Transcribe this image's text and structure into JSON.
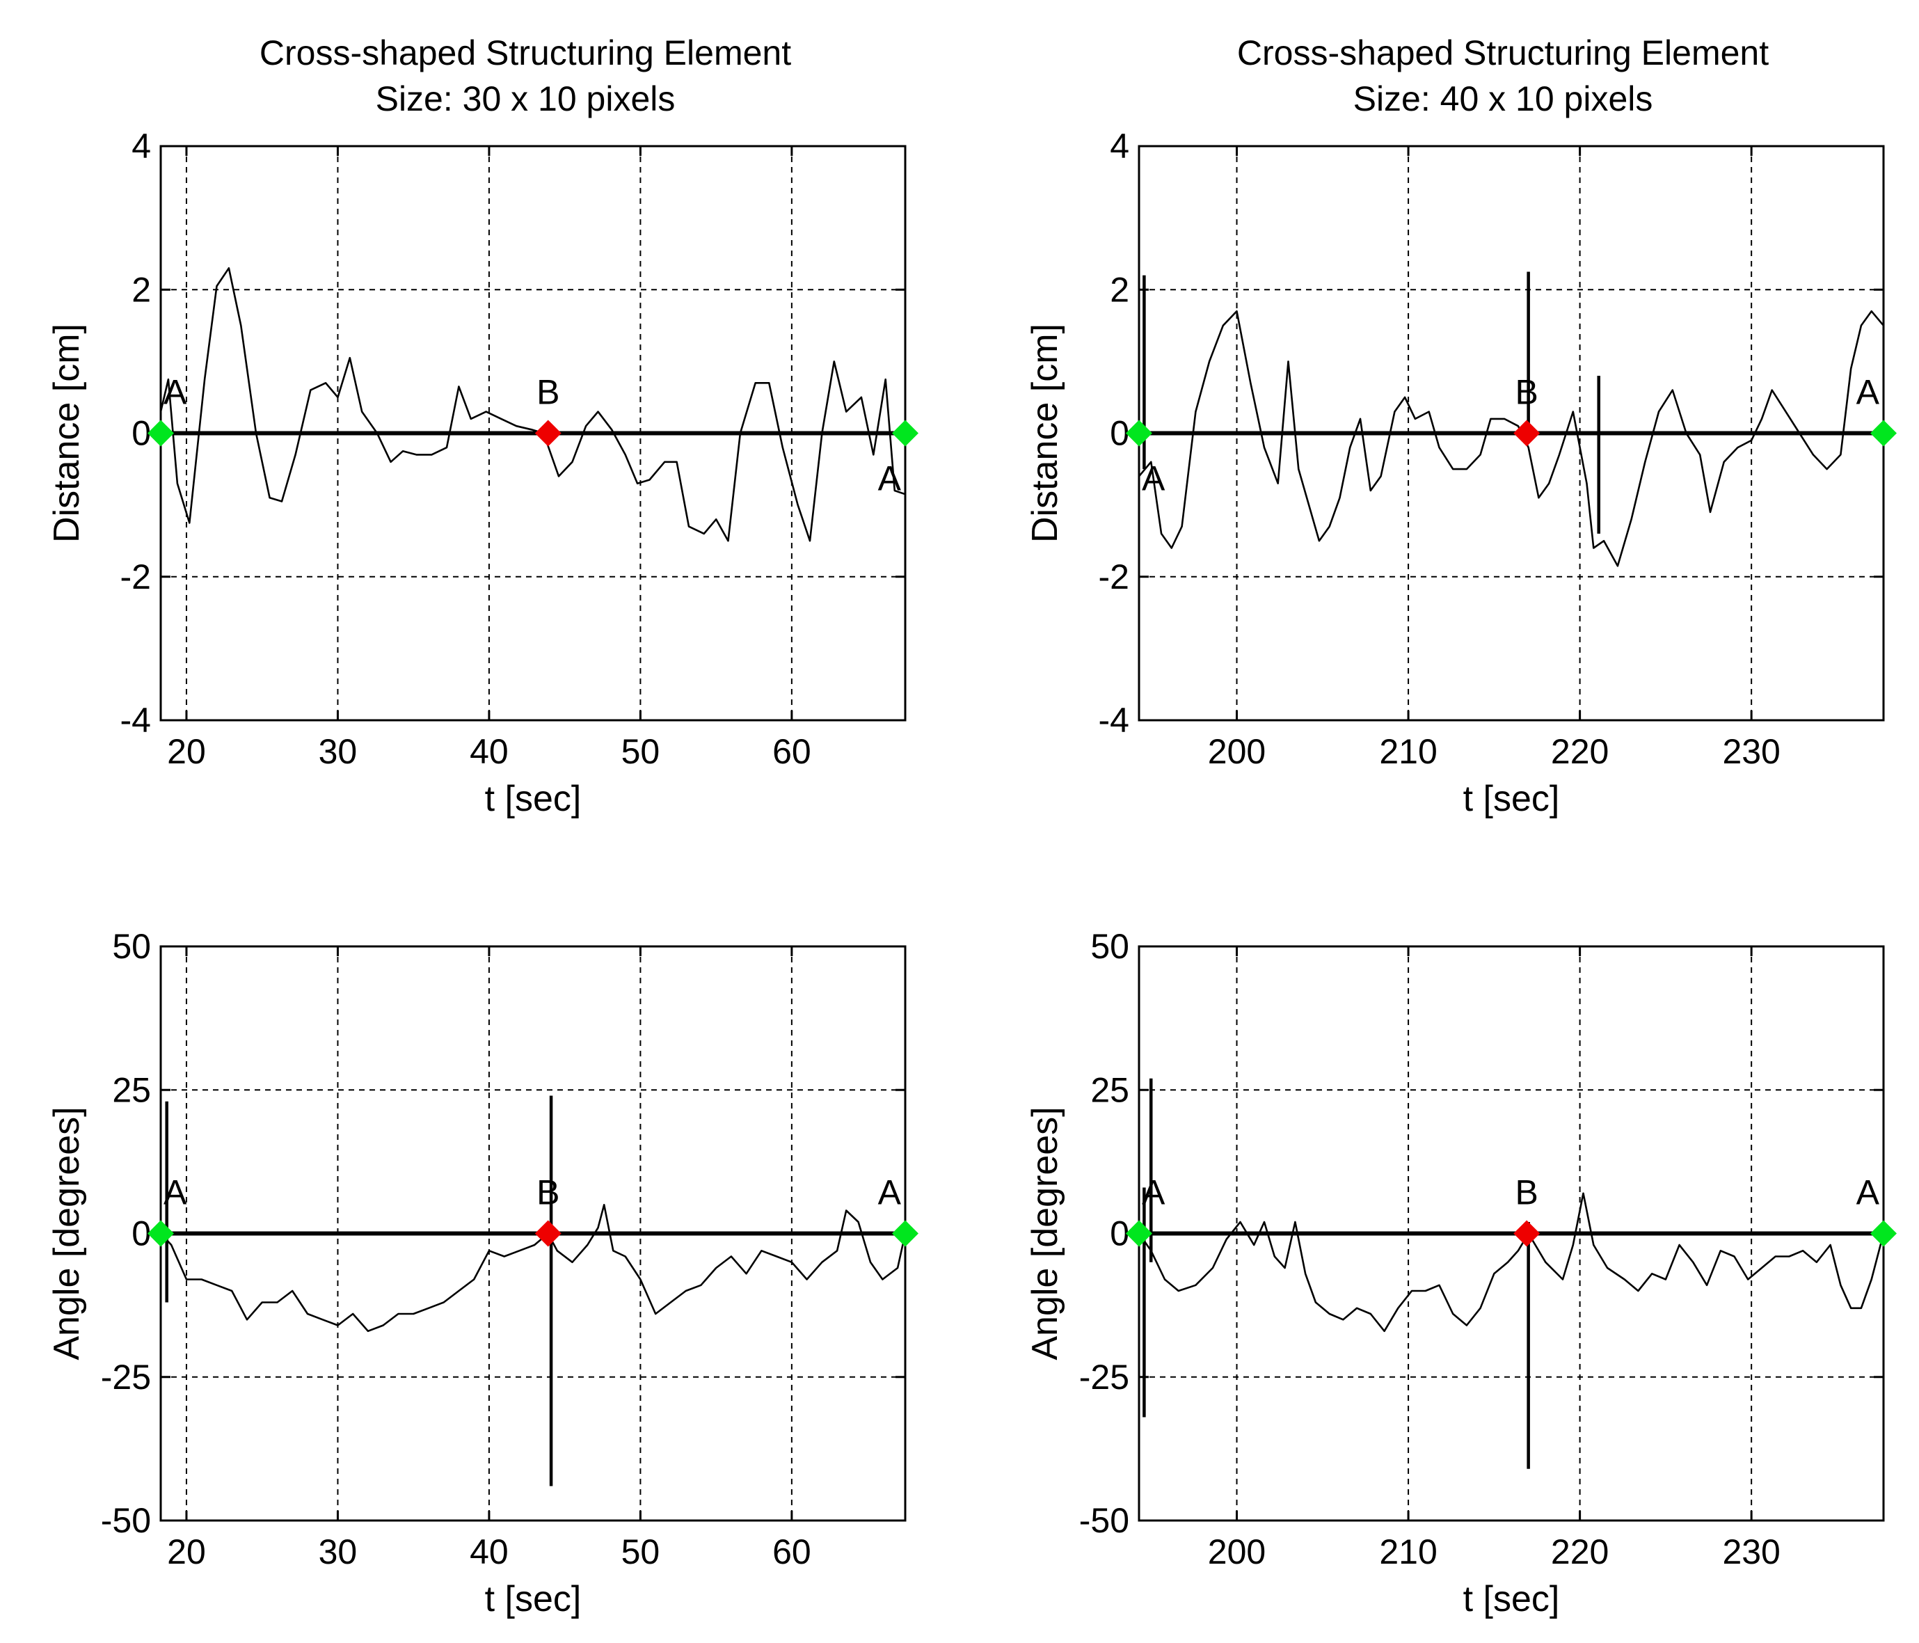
{
  "figure": {
    "columns": [
      {
        "title_line1": "Cross-shaped Structuring Element",
        "title_line2": "Size: 30 x 10 pixels"
      },
      {
        "title_line1": "Cross-shaped Structuring Element",
        "title_line2": "Size: 40 x 10 pixels"
      }
    ]
  },
  "colors": {
    "trace": "#000000",
    "marker_A": "#00e61e",
    "marker_B": "#ee0000",
    "grid": "#000000"
  },
  "chart_data": [
    {
      "id": "distance-30x10",
      "type": "line",
      "xlabel": "t [sec]",
      "ylabel": "Distance [cm]",
      "xlim": [
        18.3,
        67.5
      ],
      "ylim": [
        -4,
        4
      ],
      "xticks": [
        20,
        30,
        40,
        50,
        60
      ],
      "yticks": [
        -4,
        -2,
        0,
        2,
        4
      ],
      "grid": "dashed",
      "points": [
        [
          18.3,
          0.3
        ],
        [
          18.8,
          0.75
        ],
        [
          19.4,
          -0.7
        ],
        [
          20.2,
          -1.25
        ],
        [
          21.2,
          0.75
        ],
        [
          22.0,
          2.05
        ],
        [
          22.8,
          2.3
        ],
        [
          23.6,
          1.5
        ],
        [
          24.6,
          0.0
        ],
        [
          25.5,
          -0.9
        ],
        [
          26.3,
          -0.95
        ],
        [
          27.2,
          -0.3
        ],
        [
          28.2,
          0.6
        ],
        [
          29.2,
          0.7
        ],
        [
          30.0,
          0.5
        ],
        [
          30.8,
          1.05
        ],
        [
          31.6,
          0.3
        ],
        [
          32.6,
          0.0
        ],
        [
          33.5,
          -0.4
        ],
        [
          34.3,
          -0.25
        ],
        [
          35.2,
          -0.3
        ],
        [
          36.2,
          -0.3
        ],
        [
          37.2,
          -0.2
        ],
        [
          38.0,
          0.65
        ],
        [
          38.8,
          0.2
        ],
        [
          39.8,
          0.3
        ],
        [
          40.8,
          0.2
        ],
        [
          41.8,
          0.1
        ],
        [
          42.8,
          0.05
        ],
        [
          43.6,
          0.0
        ],
        [
          44.6,
          -0.6
        ],
        [
          45.5,
          -0.4
        ],
        [
          46.4,
          0.1
        ],
        [
          47.2,
          0.3
        ],
        [
          48.1,
          0.05
        ],
        [
          49.0,
          -0.3
        ],
        [
          49.8,
          -0.7
        ],
        [
          50.6,
          -0.65
        ],
        [
          51.6,
          -0.4
        ],
        [
          52.4,
          -0.4
        ],
        [
          53.2,
          -1.3
        ],
        [
          54.2,
          -1.4
        ],
        [
          55.0,
          -1.2
        ],
        [
          55.8,
          -1.5
        ],
        [
          56.6,
          0.0
        ],
        [
          57.6,
          0.7
        ],
        [
          58.5,
          0.7
        ],
        [
          59.4,
          -0.2
        ],
        [
          60.4,
          -1.0
        ],
        [
          61.2,
          -1.5
        ],
        [
          62.0,
          0.0
        ],
        [
          62.8,
          1.0
        ],
        [
          63.6,
          0.3
        ],
        [
          64.6,
          0.5
        ],
        [
          65.4,
          -0.3
        ],
        [
          66.2,
          0.75
        ],
        [
          66.8,
          -0.8
        ],
        [
          67.5,
          -0.85
        ]
      ],
      "spikes": [],
      "markers": [
        {
          "label": "A",
          "x": 18.3,
          "y": 0,
          "color": "green",
          "label_pos": "above-right"
        },
        {
          "label": "B",
          "x": 43.9,
          "y": 0,
          "color": "red",
          "label_pos": "above"
        },
        {
          "label": "A",
          "x": 67.5,
          "y": 0,
          "color": "green",
          "label_pos": "below-left"
        }
      ]
    },
    {
      "id": "distance-40x10",
      "type": "line",
      "xlabel": "t [sec]",
      "ylabel": "Distance [cm]",
      "xlim": [
        194.3,
        237.7
      ],
      "ylim": [
        -4,
        4
      ],
      "xticks": [
        200,
        210,
        220,
        230
      ],
      "yticks": [
        -4,
        -2,
        0,
        2,
        4
      ],
      "grid": "dashed",
      "points": [
        [
          194.3,
          -0.6
        ],
        [
          195.0,
          -0.4
        ],
        [
          195.6,
          -1.4
        ],
        [
          196.2,
          -1.6
        ],
        [
          196.8,
          -1.3
        ],
        [
          197.6,
          0.3
        ],
        [
          198.4,
          1.0
        ],
        [
          199.2,
          1.5
        ],
        [
          200.0,
          1.7
        ],
        [
          200.8,
          0.7
        ],
        [
          201.6,
          -0.2
        ],
        [
          202.4,
          -0.7
        ],
        [
          203.0,
          1.0
        ],
        [
          203.6,
          -0.5
        ],
        [
          204.2,
          -1.0
        ],
        [
          204.8,
          -1.5
        ],
        [
          205.4,
          -1.3
        ],
        [
          206.0,
          -0.9
        ],
        [
          206.6,
          -0.2
        ],
        [
          207.2,
          0.2
        ],
        [
          207.8,
          -0.8
        ],
        [
          208.4,
          -0.6
        ],
        [
          209.2,
          0.3
        ],
        [
          209.8,
          0.5
        ],
        [
          210.4,
          0.2
        ],
        [
          211.2,
          0.3
        ],
        [
          211.8,
          -0.2
        ],
        [
          212.6,
          -0.5
        ],
        [
          213.4,
          -0.5
        ],
        [
          214.2,
          -0.3
        ],
        [
          214.8,
          0.2
        ],
        [
          215.6,
          0.2
        ],
        [
          216.4,
          0.1
        ],
        [
          217.0,
          -0.2
        ],
        [
          217.6,
          -0.9
        ],
        [
          218.2,
          -0.7
        ],
        [
          218.8,
          -0.3
        ],
        [
          219.6,
          0.3
        ],
        [
          220.4,
          -0.7
        ],
        [
          220.8,
          -1.6
        ],
        [
          221.4,
          -1.5
        ],
        [
          222.2,
          -1.85
        ],
        [
          223.0,
          -1.2
        ],
        [
          223.8,
          -0.4
        ],
        [
          224.6,
          0.3
        ],
        [
          225.4,
          0.6
        ],
        [
          226.2,
          0.0
        ],
        [
          227.0,
          -0.3
        ],
        [
          227.6,
          -1.1
        ],
        [
          228.4,
          -0.4
        ],
        [
          229.2,
          -0.2
        ],
        [
          230.0,
          -0.1
        ],
        [
          230.6,
          0.2
        ],
        [
          231.2,
          0.6
        ],
        [
          232.0,
          0.3
        ],
        [
          232.8,
          0.0
        ],
        [
          233.6,
          -0.3
        ],
        [
          234.4,
          -0.5
        ],
        [
          235.2,
          -0.3
        ],
        [
          235.8,
          0.9
        ],
        [
          236.4,
          1.5
        ],
        [
          237.0,
          1.7
        ],
        [
          237.7,
          1.5
        ]
      ],
      "spikes": [
        {
          "x": 194.6,
          "y0": -0.5,
          "y1": 2.2
        },
        {
          "x": 217.0,
          "y0": 0.0,
          "y1": 2.25
        },
        {
          "x": 221.1,
          "y0": -1.4,
          "y1": 0.8
        }
      ],
      "markers": [
        {
          "label": "A",
          "x": 194.3,
          "y": 0,
          "color": "green",
          "label_pos": "below-right"
        },
        {
          "label": "B",
          "x": 216.9,
          "y": 0,
          "color": "red",
          "label_pos": "above"
        },
        {
          "label": "A",
          "x": 237.7,
          "y": 0,
          "color": "green",
          "label_pos": "above-left"
        }
      ]
    },
    {
      "id": "angle-30x10",
      "type": "line",
      "xlabel": "t [sec]",
      "ylabel": "Angle [degrees]",
      "xlim": [
        18.3,
        67.5
      ],
      "ylim": [
        -50,
        50
      ],
      "xticks": [
        20,
        30,
        40,
        50,
        60
      ],
      "yticks": [
        -50,
        -25,
        0,
        25,
        50
      ],
      "grid": "dashed",
      "points": [
        [
          18.3,
          0
        ],
        [
          19.0,
          -2
        ],
        [
          20.0,
          -8
        ],
        [
          21.0,
          -8
        ],
        [
          22.0,
          -9
        ],
        [
          23.0,
          -10
        ],
        [
          24.0,
          -15
        ],
        [
          25.0,
          -12
        ],
        [
          26.0,
          -12
        ],
        [
          27.0,
          -10
        ],
        [
          28.0,
          -14
        ],
        [
          29.0,
          -15
        ],
        [
          30.0,
          -16
        ],
        [
          31.0,
          -14
        ],
        [
          32.0,
          -17
        ],
        [
          33.0,
          -16
        ],
        [
          34.0,
          -14
        ],
        [
          35.0,
          -14
        ],
        [
          36.0,
          -13
        ],
        [
          37.0,
          -12
        ],
        [
          38.0,
          -10
        ],
        [
          39.0,
          -8
        ],
        [
          40.0,
          -3
        ],
        [
          41.0,
          -4
        ],
        [
          42.0,
          -3
        ],
        [
          43.0,
          -2
        ],
        [
          43.9,
          0
        ],
        [
          44.5,
          -3
        ],
        [
          45.5,
          -5
        ],
        [
          46.5,
          -2
        ],
        [
          47.2,
          1
        ],
        [
          47.6,
          5
        ],
        [
          48.2,
          -3
        ],
        [
          49.0,
          -4
        ],
        [
          50.0,
          -8
        ],
        [
          51.0,
          -14
        ],
        [
          52.0,
          -12
        ],
        [
          53.0,
          -10
        ],
        [
          54.0,
          -9
        ],
        [
          55.0,
          -6
        ],
        [
          56.0,
          -4
        ],
        [
          57.0,
          -7
        ],
        [
          58.0,
          -3
        ],
        [
          59.0,
          -4
        ],
        [
          60.0,
          -5
        ],
        [
          61.0,
          -8
        ],
        [
          62.0,
          -5
        ],
        [
          63.0,
          -3
        ],
        [
          63.6,
          4
        ],
        [
          64.4,
          2
        ],
        [
          65.2,
          -5
        ],
        [
          66.0,
          -8
        ],
        [
          67.0,
          -6
        ],
        [
          67.5,
          0
        ]
      ],
      "spikes": [
        {
          "x": 18.7,
          "y0": -12,
          "y1": 23
        },
        {
          "x": 44.1,
          "y0": -44,
          "y1": 24
        }
      ],
      "markers": [
        {
          "label": "A",
          "x": 18.3,
          "y": 0,
          "color": "green",
          "label_pos": "above-right"
        },
        {
          "label": "B",
          "x": 43.9,
          "y": 0,
          "color": "red",
          "label_pos": "above"
        },
        {
          "label": "A",
          "x": 67.5,
          "y": 0,
          "color": "green",
          "label_pos": "above-left"
        }
      ]
    },
    {
      "id": "angle-40x10",
      "type": "line",
      "xlabel": "t [sec]",
      "ylabel": "Angle [degrees]",
      "xlim": [
        194.3,
        237.7
      ],
      "ylim": [
        -50,
        50
      ],
      "xticks": [
        200,
        210,
        220,
        230
      ],
      "yticks": [
        -50,
        -25,
        0,
        25,
        50
      ],
      "grid": "dashed",
      "points": [
        [
          194.3,
          0
        ],
        [
          195.0,
          -3
        ],
        [
          195.8,
          -8
        ],
        [
          196.6,
          -10
        ],
        [
          197.6,
          -9
        ],
        [
          198.6,
          -6
        ],
        [
          199.4,
          -1
        ],
        [
          200.2,
          2
        ],
        [
          201.0,
          -2
        ],
        [
          201.6,
          2
        ],
        [
          202.2,
          -4
        ],
        [
          202.8,
          -6
        ],
        [
          203.4,
          2
        ],
        [
          204.0,
          -7
        ],
        [
          204.6,
          -12
        ],
        [
          205.4,
          -14
        ],
        [
          206.2,
          -15
        ],
        [
          207.0,
          -13
        ],
        [
          207.8,
          -14
        ],
        [
          208.6,
          -17
        ],
        [
          209.4,
          -13
        ],
        [
          210.2,
          -10
        ],
        [
          211.0,
          -10
        ],
        [
          211.8,
          -9
        ],
        [
          212.6,
          -14
        ],
        [
          213.4,
          -16
        ],
        [
          214.2,
          -13
        ],
        [
          215.0,
          -7
        ],
        [
          215.8,
          -5
        ],
        [
          216.4,
          -3
        ],
        [
          217.0,
          0
        ],
        [
          218.0,
          -5
        ],
        [
          219.0,
          -8
        ],
        [
          219.6,
          -2
        ],
        [
          220.2,
          7
        ],
        [
          220.8,
          -2
        ],
        [
          221.6,
          -6
        ],
        [
          222.6,
          -8
        ],
        [
          223.4,
          -10
        ],
        [
          224.2,
          -7
        ],
        [
          225.0,
          -8
        ],
        [
          225.8,
          -2
        ],
        [
          226.6,
          -5
        ],
        [
          227.4,
          -9
        ],
        [
          228.2,
          -3
        ],
        [
          229.0,
          -4
        ],
        [
          229.8,
          -8
        ],
        [
          230.6,
          -6
        ],
        [
          231.4,
          -4
        ],
        [
          232.2,
          -4
        ],
        [
          233.0,
          -3
        ],
        [
          233.8,
          -5
        ],
        [
          234.6,
          -2
        ],
        [
          235.2,
          -9
        ],
        [
          235.8,
          -13
        ],
        [
          236.4,
          -13
        ],
        [
          237.0,
          -8
        ],
        [
          237.7,
          0
        ]
      ],
      "spikes": [
        {
          "x": 194.6,
          "y0": -32,
          "y1": 8
        },
        {
          "x": 195.0,
          "y0": -5,
          "y1": 27
        },
        {
          "x": 217.0,
          "y0": -41,
          "y1": 2
        }
      ],
      "markers": [
        {
          "label": "A",
          "x": 194.3,
          "y": 0,
          "color": "green",
          "label_pos": "above-right"
        },
        {
          "label": "B",
          "x": 216.9,
          "y": 0,
          "color": "red",
          "label_pos": "above"
        },
        {
          "label": "A",
          "x": 237.7,
          "y": 0,
          "color": "green",
          "label_pos": "above-left"
        }
      ]
    }
  ]
}
